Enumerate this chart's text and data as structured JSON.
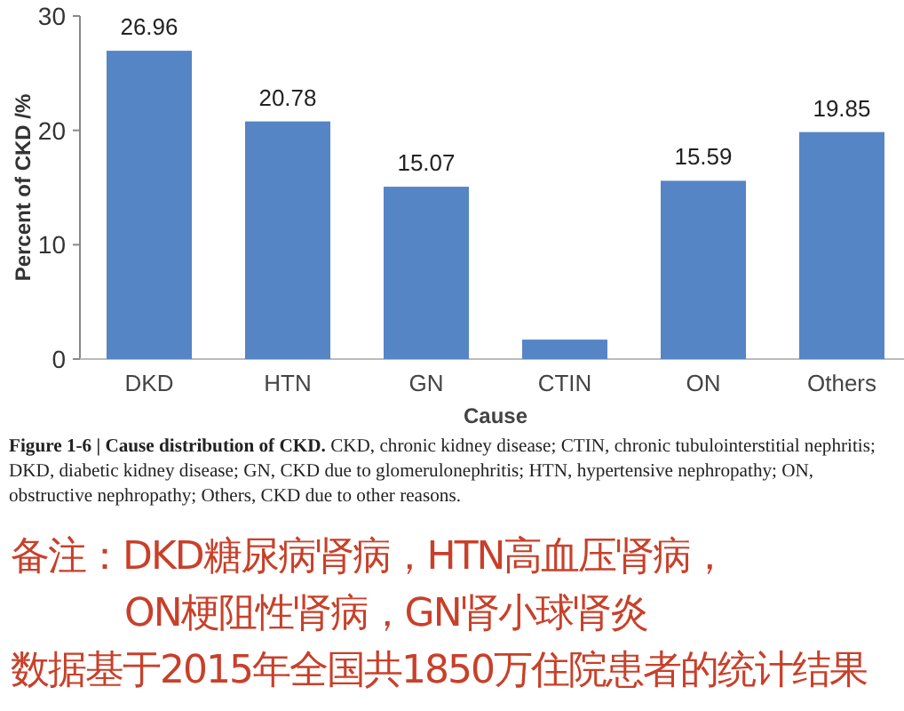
{
  "chart_data": {
    "type": "bar",
    "xlabel": "Cause",
    "ylabel": "Percent of CKD /%",
    "categories": [
      "DKD",
      "HTN",
      "GN",
      "CTIN",
      "ON",
      "Others"
    ],
    "values": [
      26.96,
      20.78,
      15.07,
      1.7,
      15.59,
      19.85
    ],
    "value_labels": [
      "26.96",
      "20.78",
      "15.07",
      null,
      "15.59",
      "19.85"
    ],
    "color": "#5585c5",
    "ylim": [
      0,
      30
    ],
    "yticks": [
      0,
      10,
      20,
      30
    ],
    "annotations": [
      "**Figure 1-6 | Cause distribution of CKD.** CKD, chronic kidney disease; CTIN, chronic tubulointerstitial nephritis; DKD, diabetic kidney disease; GN, CKD due to glomerulonephritis; HTN, hypertensive nephropathy; ON, obstructive nephropathy; Others, CKD due to other reasons.",
      "备注：DKD糖尿病肾病，HTN高血压肾病，",
      "ON梗阻性肾病，GN肾小球肾炎",
      "数据基于2015年全国共1850万住院患者的统计结果"
    ]
  }
}
